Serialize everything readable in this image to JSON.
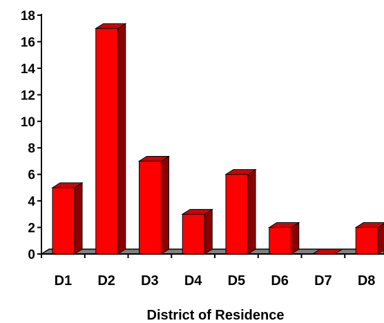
{
  "chart_data": {
    "type": "bar",
    "title": "",
    "xlabel": "District of Residence",
    "ylabel": "",
    "categories": [
      "D1",
      "D2",
      "D3",
      "D4",
      "D5",
      "D6",
      "D7",
      "D8"
    ],
    "values": [
      5,
      17,
      7,
      3,
      6,
      2,
      0,
      2
    ],
    "ylim": [
      0,
      18
    ],
    "yticks": [
      0,
      2,
      4,
      6,
      8,
      10,
      12,
      14,
      16,
      18
    ],
    "grid": false,
    "legend": "none",
    "style": "3d",
    "colors": {
      "bar_front": "#ff0000",
      "bar_top": "#d40000",
      "bar_side": "#8b0000",
      "floor": "#808080",
      "axis": "#000000"
    }
  }
}
